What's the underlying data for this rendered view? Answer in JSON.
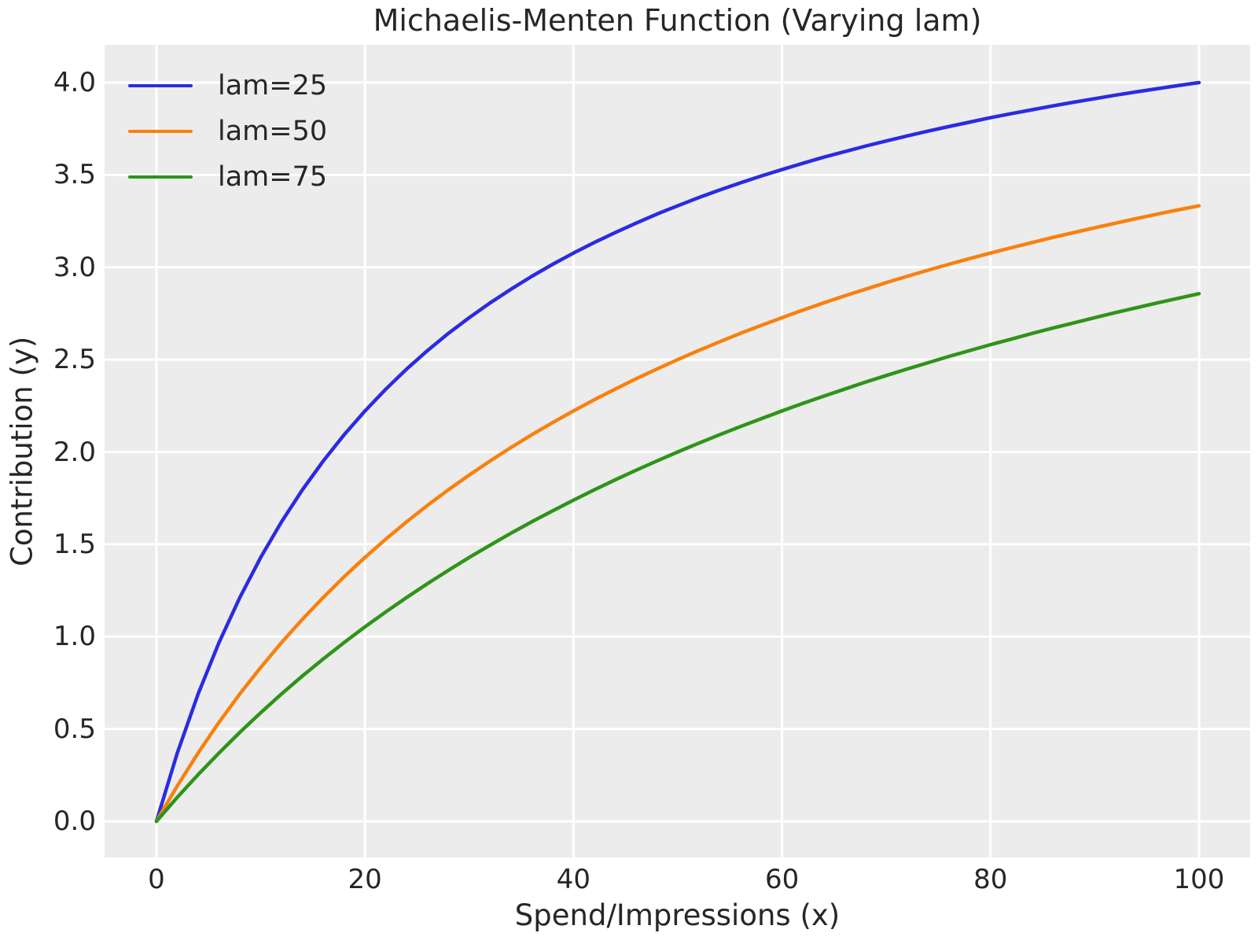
{
  "styles": {
    "axes_background": "#ececec",
    "grid_color": "#ffffff",
    "text_color": "#262626",
    "series_colors": [
      "#2b2be2",
      "#f9800e",
      "#2e9418"
    ]
  },
  "chart_data": {
    "type": "line",
    "title": "Michaelis-Menten Function (Varying lam)",
    "xlabel": "Spend/Impressions (x)",
    "ylabel": "Contribution (y)",
    "xlim": [
      0,
      100
    ],
    "ylim": [
      0,
      4
    ],
    "grid": true,
    "legend_position": "upper-left",
    "x_ticks": [
      0,
      20,
      40,
      60,
      80,
      100
    ],
    "x_tick_labels": [
      "0",
      "20",
      "40",
      "60",
      "80",
      "100"
    ],
    "y_ticks": [
      0.0,
      0.5,
      1.0,
      1.5,
      2.0,
      2.5,
      3.0,
      3.5,
      4.0
    ],
    "y_tick_labels": [
      "0.0",
      "0.5",
      "1.0",
      "1.5",
      "2.0",
      "2.5",
      "3.0",
      "3.5",
      "4.0"
    ],
    "x": [
      0,
      2,
      4,
      6,
      8,
      10,
      12,
      14,
      16,
      18,
      20,
      22,
      24,
      26,
      28,
      30,
      32,
      34,
      36,
      38,
      40,
      42,
      44,
      46,
      48,
      50,
      52,
      54,
      56,
      58,
      60,
      62,
      64,
      66,
      68,
      70,
      72,
      74,
      76,
      78,
      80,
      82,
      84,
      86,
      88,
      90,
      92,
      94,
      96,
      98,
      100
    ],
    "series": [
      {
        "name": "lam=25",
        "lam": 25,
        "color": "#2b2be2",
        "values": [
          0,
          0.37,
          0.69,
          0.968,
          1.212,
          1.429,
          1.622,
          1.795,
          1.951,
          2.093,
          2.222,
          2.34,
          2.449,
          2.549,
          2.642,
          2.727,
          2.807,
          2.881,
          2.951,
          3.016,
          3.077,
          3.134,
          3.188,
          3.239,
          3.288,
          3.333,
          3.377,
          3.418,
          3.457,
          3.494,
          3.529,
          3.563,
          3.596,
          3.626,
          3.656,
          3.684,
          3.711,
          3.737,
          3.762,
          3.786,
          3.81,
          3.832,
          3.853,
          3.874,
          3.894,
          3.913,
          3.932,
          3.95,
          3.967,
          3.984,
          4.0
        ]
      },
      {
        "name": "lam=50",
        "lam": 50,
        "color": "#f9800e",
        "values": [
          0,
          0.192,
          0.37,
          0.536,
          0.69,
          0.833,
          0.968,
          1.094,
          1.212,
          1.324,
          1.429,
          1.528,
          1.622,
          1.711,
          1.795,
          1.875,
          1.951,
          2.024,
          2.093,
          2.159,
          2.222,
          2.283,
          2.34,
          2.396,
          2.449,
          2.5,
          2.549,
          2.596,
          2.642,
          2.685,
          2.727,
          2.768,
          2.807,
          2.845,
          2.881,
          2.917,
          2.951,
          2.984,
          3.016,
          3.047,
          3.077,
          3.106,
          3.134,
          3.162,
          3.188,
          3.214,
          3.239,
          3.264,
          3.288,
          3.311,
          3.333
        ]
      },
      {
        "name": "lam=75",
        "lam": 75,
        "color": "#2e9418",
        "values": [
          0,
          0.13,
          0.253,
          0.37,
          0.482,
          0.588,
          0.69,
          0.787,
          0.879,
          0.968,
          1.053,
          1.134,
          1.212,
          1.287,
          1.359,
          1.429,
          1.495,
          1.56,
          1.622,
          1.681,
          1.739,
          1.795,
          1.849,
          1.901,
          1.951,
          2.0,
          2.047,
          2.093,
          2.137,
          2.18,
          2.222,
          2.263,
          2.302,
          2.34,
          2.378,
          2.414,
          2.449,
          2.483,
          2.517,
          2.549,
          2.581,
          2.611,
          2.642,
          2.671,
          2.699,
          2.727,
          2.755,
          2.781,
          2.807,
          2.832,
          2.857
        ]
      }
    ]
  }
}
